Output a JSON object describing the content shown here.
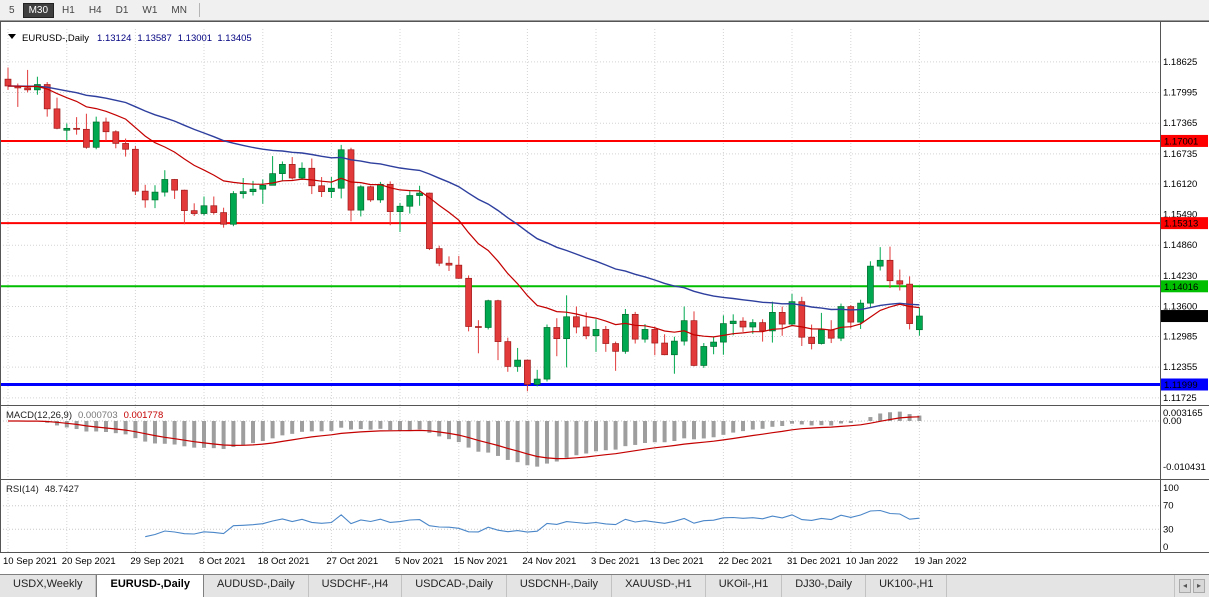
{
  "colors": {
    "up": "#00A94F",
    "upStroke": "#006B2D",
    "down": "#E23A3A",
    "downStroke": "#9E1A1A",
    "maFast": "#C40000",
    "maSlow": "#2E3F9E",
    "grid": "#D4D4D4",
    "lineRed": "#FF0000",
    "lineGreen": "#00BE00",
    "lineBlue": "#0000FF",
    "badgeBlack": "#000000",
    "macdHist": "#9E9E9E",
    "macdSignal": "#C40000",
    "rsiLine": "#4A86C8",
    "panelBorder": "#555555"
  },
  "toolbar": {
    "periods": [
      {
        "label": "5",
        "active": false
      },
      {
        "label": "M30",
        "active": true
      },
      {
        "label": "H1",
        "active": false
      },
      {
        "label": "H4",
        "active": false
      },
      {
        "label": "D1",
        "active": false
      },
      {
        "label": "W1",
        "active": false
      },
      {
        "label": "MN",
        "active": false
      }
    ]
  },
  "chart_header": {
    "symbol": "EURUSD-,Daily",
    "open": "1.13124",
    "high": "1.13587",
    "low": "1.13001",
    "close": "1.13405"
  },
  "price_axis": {
    "ticks": [
      "1.18625",
      "1.17995",
      "1.17365",
      "1.16735",
      "1.16120",
      "1.15490",
      "1.14860",
      "1.14230",
      "1.13600",
      "1.12985",
      "1.12355",
      "1.11725"
    ]
  },
  "hlines": [
    {
      "price": 1.17001,
      "label": "1.17001",
      "color": "#FF0000",
      "width": 2
    },
    {
      "price": 1.15313,
      "label": "1.15313",
      "color": "#FF0000",
      "width": 2
    },
    {
      "price": 1.14016,
      "label": "1.14016",
      "color": "#00BE00",
      "width": 2
    },
    {
      "price": 1.11999,
      "label": "1.11999",
      "color": "#0000FF",
      "width": 3
    }
  ],
  "current_price": {
    "value": 1.13405,
    "label": "1.13405"
  },
  "macd": {
    "label": "MACD(12,26,9)",
    "value_main": "0.000703",
    "value_signal": "0.001778",
    "axis": [
      {
        "v": 0.003165,
        "label": "0.003165"
      },
      {
        "v": 0,
        "label": "0.00"
      },
      {
        "v": -0.010431,
        "label": "-0.010431"
      }
    ],
    "fast": 12,
    "slow": 26,
    "signal": 9
  },
  "rsi": {
    "label": "RSI(14)",
    "value": "48.7427",
    "period": 14,
    "levels": [
      70,
      30
    ],
    "axis": [
      {
        "v": 100,
        "label": "100"
      },
      {
        "v": 70,
        "label": "70"
      },
      {
        "v": 30,
        "label": "30"
      },
      {
        "v": 0,
        "label": "0"
      }
    ]
  },
  "chart_data": {
    "type": "candlestick",
    "symbol": "EURUSD",
    "timeframe": "Daily",
    "ylim": [
      1.1166,
      1.193
    ],
    "ma_fast_period": 16,
    "ma_slow_period": 42,
    "x_labels": [
      {
        "index": 0,
        "label": "10 Sep 2021"
      },
      {
        "index": 6,
        "label": "20 Sep 2021"
      },
      {
        "index": 13,
        "label": "29 Sep 2021"
      },
      {
        "index": 20,
        "label": "8 Oct 2021"
      },
      {
        "index": 26,
        "label": "18 Oct 2021"
      },
      {
        "index": 33,
        "label": "27 Oct 2021"
      },
      {
        "index": 40,
        "label": "5 Nov 2021"
      },
      {
        "index": 46,
        "label": "15 Nov 2021"
      },
      {
        "index": 53,
        "label": "24 Nov 2021"
      },
      {
        "index": 60,
        "label": "3 Dec 2021"
      },
      {
        "index": 66,
        "label": "13 Dec 2021"
      },
      {
        "index": 73,
        "label": "22 Dec 2021"
      },
      {
        "index": 80,
        "label": "31 Dec 2021"
      },
      {
        "index": 86,
        "label": "10 Jan 2022"
      },
      {
        "index": 93,
        "label": "19 Jan 2022"
      }
    ],
    "candles": [
      [
        1.1827,
        1.1851,
        1.1805,
        1.1813
      ],
      [
        1.1813,
        1.1818,
        1.177,
        1.1809
      ],
      [
        1.1809,
        1.1846,
        1.18,
        1.1805
      ],
      [
        1.1805,
        1.1832,
        1.1795,
        1.1816
      ],
      [
        1.1816,
        1.1821,
        1.175,
        1.1766
      ],
      [
        1.1766,
        1.1789,
        1.1724,
        1.1726
      ],
      [
        1.1722,
        1.1736,
        1.17,
        1.1726
      ],
      [
        1.1726,
        1.1749,
        1.1713,
        1.1724
      ],
      [
        1.1724,
        1.1756,
        1.1684,
        1.1687
      ],
      [
        1.1687,
        1.175,
        1.1683,
        1.1739
      ],
      [
        1.1739,
        1.1748,
        1.1701,
        1.1719
      ],
      [
        1.1719,
        1.1722,
        1.1685,
        1.1695
      ],
      [
        1.1695,
        1.1705,
        1.1668,
        1.1683
      ],
      [
        1.1683,
        1.169,
        1.1589,
        1.1597
      ],
      [
        1.1597,
        1.161,
        1.1563,
        1.1579
      ],
      [
        1.1579,
        1.1609,
        1.1562,
        1.1595
      ],
      [
        1.1595,
        1.164,
        1.1586,
        1.1621
      ],
      [
        1.1621,
        1.1622,
        1.1581,
        1.1599
      ],
      [
        1.1599,
        1.16,
        1.1529,
        1.1557
      ],
      [
        1.1557,
        1.1572,
        1.1546,
        1.1551
      ],
      [
        1.1551,
        1.1586,
        1.1547,
        1.1567
      ],
      [
        1.1567,
        1.1586,
        1.1549,
        1.1553
      ],
      [
        1.1553,
        1.1563,
        1.1522,
        1.1529
      ],
      [
        1.1529,
        1.1597,
        1.1525,
        1.1592
      ],
      [
        1.1592,
        1.1624,
        1.1582,
        1.1596
      ],
      [
        1.1596,
        1.1618,
        1.1588,
        1.1601
      ],
      [
        1.1601,
        1.1621,
        1.1571,
        1.1609
      ],
      [
        1.1609,
        1.1669,
        1.1609,
        1.1633
      ],
      [
        1.1633,
        1.1658,
        1.1617,
        1.1652
      ],
      [
        1.1652,
        1.1667,
        1.1621,
        1.1624
      ],
      [
        1.1624,
        1.1656,
        1.162,
        1.1644
      ],
      [
        1.1644,
        1.1664,
        1.1591,
        1.1608
      ],
      [
        1.1608,
        1.1626,
        1.1585,
        1.1596
      ],
      [
        1.1596,
        1.1626,
        1.1583,
        1.1603
      ],
      [
        1.1603,
        1.1692,
        1.1582,
        1.1682
      ],
      [
        1.1682,
        1.1686,
        1.1535,
        1.1558
      ],
      [
        1.1558,
        1.1609,
        1.1545,
        1.1606
      ],
      [
        1.1606,
        1.1608,
        1.1575,
        1.1579
      ],
      [
        1.1579,
        1.1616,
        1.1573,
        1.1611
      ],
      [
        1.1611,
        1.1617,
        1.1527,
        1.1555
      ],
      [
        1.1555,
        1.1573,
        1.1513,
        1.1566
      ],
      [
        1.1566,
        1.1597,
        1.1551,
        1.1588
      ],
      [
        1.1588,
        1.1608,
        1.1567,
        1.1593
      ],
      [
        1.1593,
        1.1594,
        1.1476,
        1.1479
      ],
      [
        1.1479,
        1.1485,
        1.1443,
        1.1449
      ],
      [
        1.1449,
        1.1463,
        1.1433,
        1.1445
      ],
      [
        1.1445,
        1.1464,
        1.1417,
        1.1418
      ],
      [
        1.1418,
        1.1424,
        1.1309,
        1.1319
      ],
      [
        1.1319,
        1.1332,
        1.1264,
        1.1317
      ],
      [
        1.1317,
        1.1374,
        1.1313,
        1.1372
      ],
      [
        1.1372,
        1.1374,
        1.125,
        1.1288
      ],
      [
        1.1288,
        1.1296,
        1.1226,
        1.1237
      ],
      [
        1.1237,
        1.1275,
        1.1226,
        1.125
      ],
      [
        1.125,
        1.1251,
        1.1186,
        1.12
      ],
      [
        1.12,
        1.123,
        1.1196,
        1.1211
      ],
      [
        1.1211,
        1.1323,
        1.1206,
        1.1317
      ],
      [
        1.1317,
        1.1336,
        1.1258,
        1.1294
      ],
      [
        1.1294,
        1.1383,
        1.1235,
        1.1339
      ],
      [
        1.1339,
        1.136,
        1.1305,
        1.1318
      ],
      [
        1.1318,
        1.1348,
        1.1293,
        1.13
      ],
      [
        1.13,
        1.1334,
        1.1267,
        1.1313
      ],
      [
        1.1313,
        1.132,
        1.1267,
        1.1284
      ],
      [
        1.1284,
        1.1288,
        1.1228,
        1.1268
      ],
      [
        1.1268,
        1.1355,
        1.1263,
        1.1344
      ],
      [
        1.1344,
        1.1349,
        1.1284,
        1.1293
      ],
      [
        1.1293,
        1.1324,
        1.1286,
        1.1313
      ],
      [
        1.1313,
        1.1319,
        1.126,
        1.1285
      ],
      [
        1.1285,
        1.1303,
        1.126,
        1.1261
      ],
      [
        1.1261,
        1.1298,
        1.1222,
        1.1289
      ],
      [
        1.1289,
        1.136,
        1.128,
        1.1331
      ],
      [
        1.1331,
        1.135,
        1.1237,
        1.1239
      ],
      [
        1.1239,
        1.1285,
        1.1234,
        1.1278
      ],
      [
        1.1278,
        1.1298,
        1.1262,
        1.1287
      ],
      [
        1.1287,
        1.1342,
        1.1261,
        1.1325
      ],
      [
        1.1325,
        1.1344,
        1.1301,
        1.133
      ],
      [
        1.133,
        1.1338,
        1.1308,
        1.1318
      ],
      [
        1.1318,
        1.1334,
        1.1304,
        1.1327
      ],
      [
        1.1327,
        1.1334,
        1.1288,
        1.131
      ],
      [
        1.131,
        1.137,
        1.1286,
        1.1348
      ],
      [
        1.1348,
        1.136,
        1.13,
        1.1324
      ],
      [
        1.1324,
        1.1386,
        1.132,
        1.137
      ],
      [
        1.137,
        1.138,
        1.1279,
        1.1297
      ],
      [
        1.1297,
        1.1323,
        1.1272,
        1.1284
      ],
      [
        1.1284,
        1.1347,
        1.1282,
        1.1312
      ],
      [
        1.1312,
        1.1332,
        1.1285,
        1.1295
      ],
      [
        1.1295,
        1.1366,
        1.1289,
        1.136
      ],
      [
        1.136,
        1.1363,
        1.1315,
        1.1328
      ],
      [
        1.1328,
        1.1374,
        1.1314,
        1.1367
      ],
      [
        1.1367,
        1.1453,
        1.1358,
        1.1443
      ],
      [
        1.1443,
        1.1482,
        1.1434,
        1.1455
      ],
      [
        1.1455,
        1.1483,
        1.1398,
        1.1413
      ],
      [
        1.1413,
        1.1436,
        1.1393,
        1.1406
      ],
      [
        1.1406,
        1.1422,
        1.1313,
        1.1325
      ],
      [
        1.13124,
        1.13587,
        1.13001,
        1.13405
      ]
    ]
  },
  "tabs": [
    {
      "label": "USDX,Weekly",
      "active": false
    },
    {
      "label": "EURUSD-,Daily",
      "active": true
    },
    {
      "label": "AUDUSD-,Daily",
      "active": false
    },
    {
      "label": "USDCHF-,H4",
      "active": false
    },
    {
      "label": "USDCAD-,Daily",
      "active": false
    },
    {
      "label": "USDCNH-,Daily",
      "active": false
    },
    {
      "label": "XAUUSD-,H1",
      "active": false
    },
    {
      "label": "UKOil-,H1",
      "active": false
    },
    {
      "label": "DJ30-,Daily",
      "active": false
    },
    {
      "label": "UK100-,H1",
      "active": false
    }
  ]
}
